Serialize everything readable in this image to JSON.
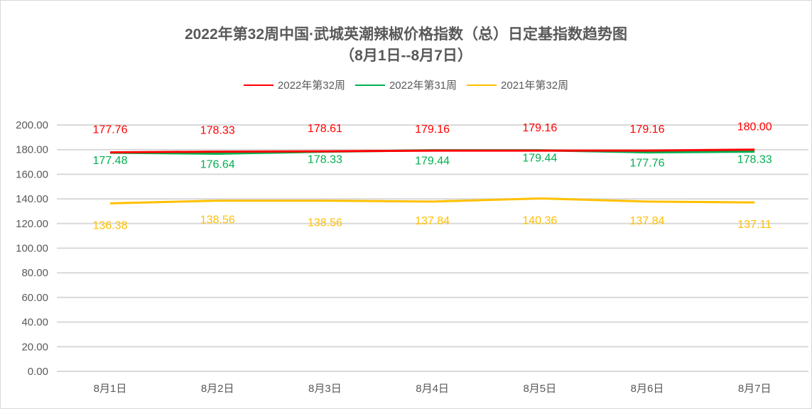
{
  "chart_data": {
    "type": "line",
    "title": "2022年第32周中国·武城英潮辣椒价格指数（总）日定基指数趋势图",
    "subtitle": "（8月1日--8月7日）",
    "categories": [
      "8月1日",
      "8月2日",
      "8月3日",
      "8月4日",
      "8月5日",
      "8月6日",
      "8月7日"
    ],
    "series": [
      {
        "name": "2022年第32周",
        "color": "#ff0000",
        "values": [
          177.76,
          178.33,
          178.61,
          179.16,
          179.16,
          179.16,
          180.0
        ]
      },
      {
        "name": "2022年第31周",
        "color": "#00b050",
        "values": [
          177.48,
          176.64,
          178.33,
          179.44,
          179.44,
          177.76,
          178.33
        ]
      },
      {
        "name": "2021年第32周",
        "color": "#ffc000",
        "values": [
          136.38,
          138.56,
          138.56,
          137.84,
          140.36,
          137.84,
          137.11
        ]
      }
    ],
    "yticks": [
      "0.00",
      "20.00",
      "40.00",
      "60.00",
      "80.00",
      "100.00",
      "120.00",
      "140.00",
      "160.00",
      "180.00",
      "200.00"
    ],
    "ylim": [
      0,
      200
    ],
    "grid": true,
    "legend": "top"
  }
}
